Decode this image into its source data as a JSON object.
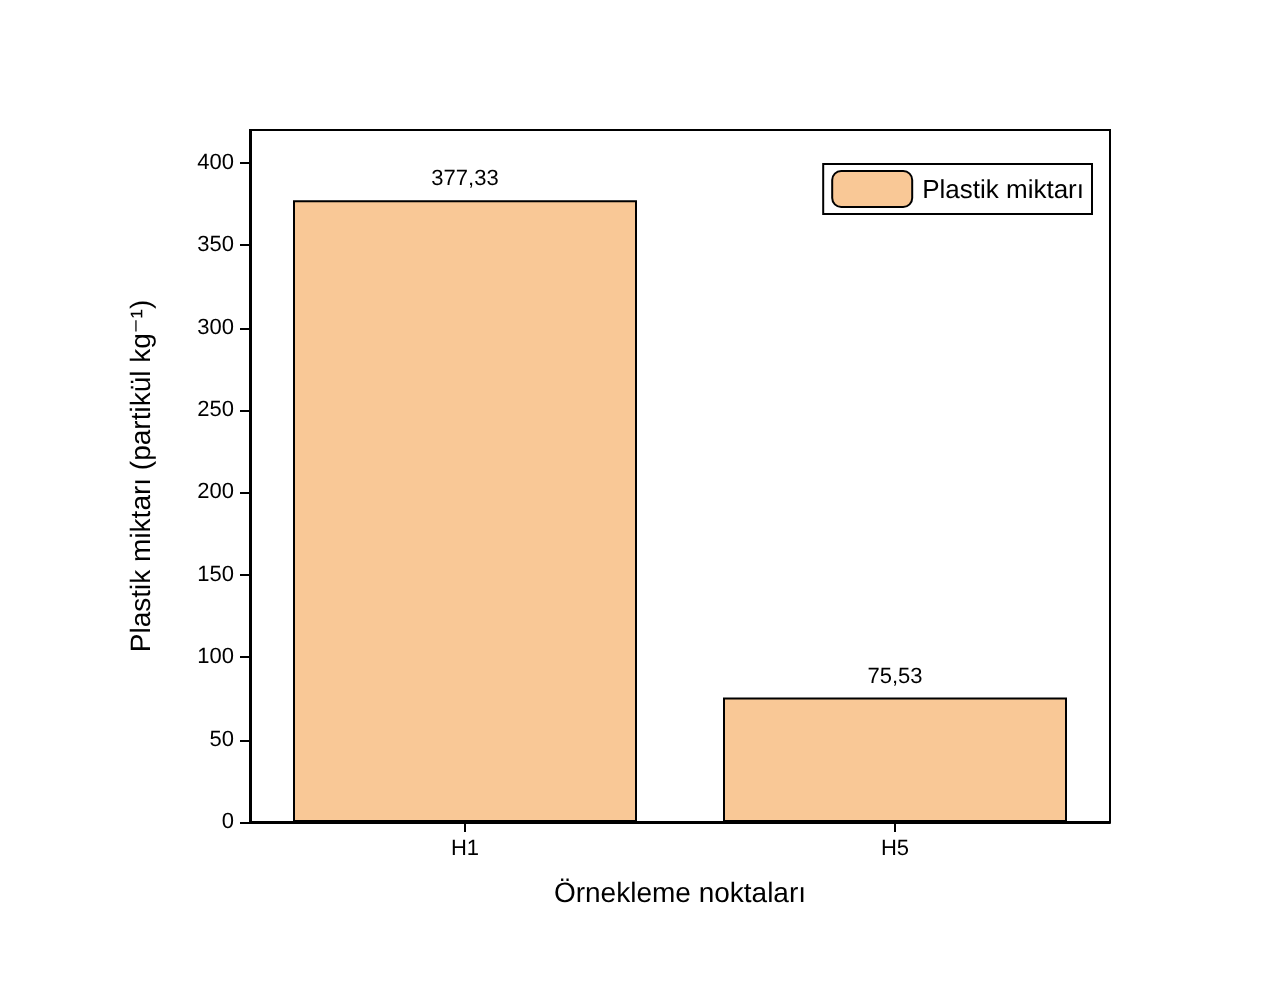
{
  "chart_data": {
    "type": "bar",
    "xlabel": "Örnekleme noktaları",
    "ylabel": "Plastik miktarı (partikül kg⁻¹)",
    "categories": [
      "H1",
      "H5"
    ],
    "series": [
      {
        "name": "Plastik miktarı",
        "color": "#f9c896",
        "values": [
          377.33,
          75.53
        ],
        "value_labels": [
          "377,33",
          "75,53"
        ]
      }
    ],
    "ylim": [
      0,
      420
    ],
    "yticks": [
      0,
      50,
      100,
      150,
      200,
      250,
      300,
      350,
      400
    ],
    "grid": false,
    "legend": "top right"
  }
}
